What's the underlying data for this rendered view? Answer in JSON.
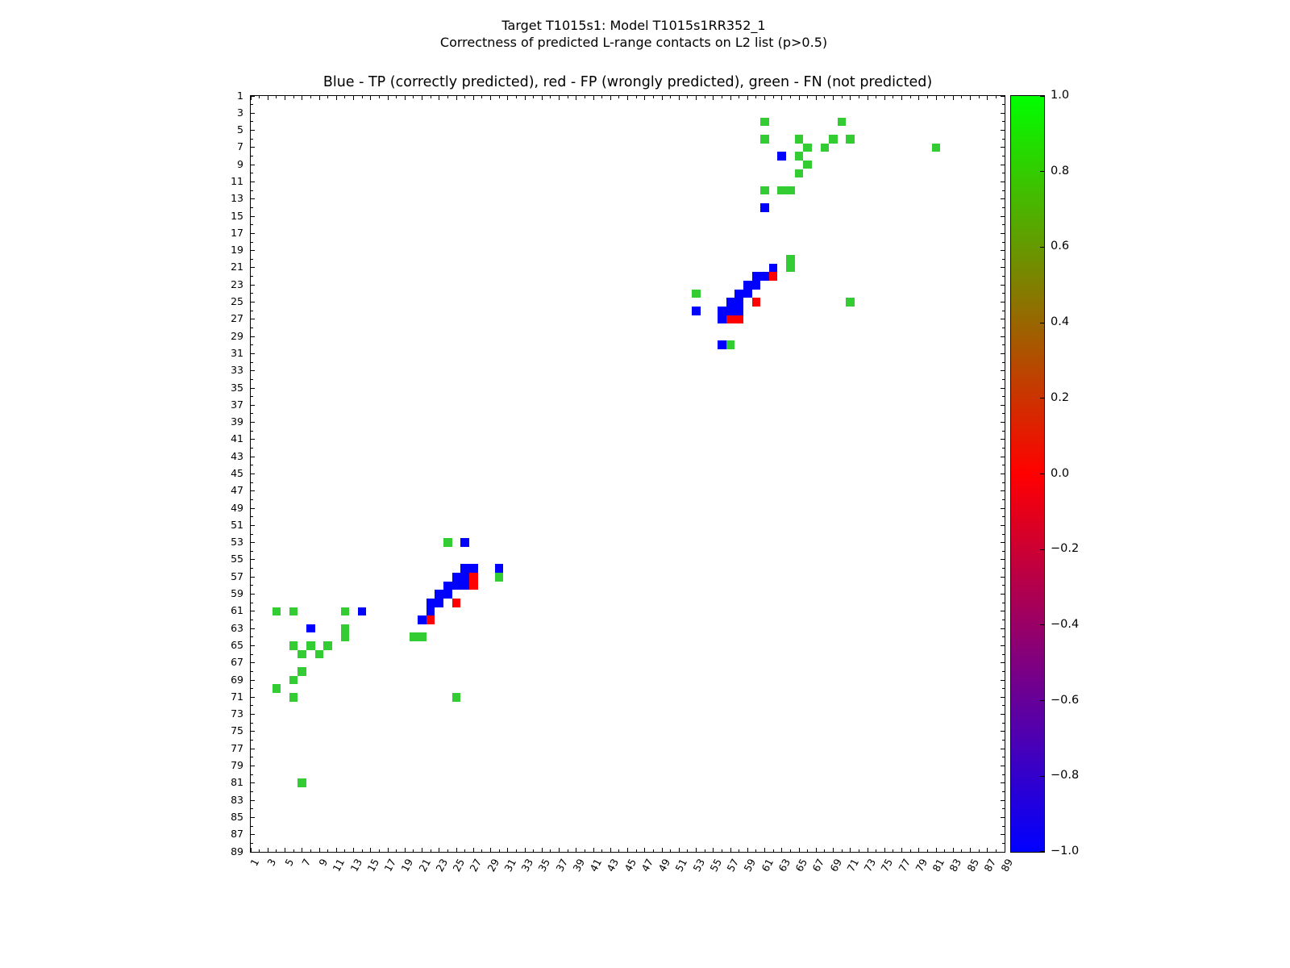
{
  "figure": {
    "suptitle_line1": "Target T1015s1: Model T1015s1RR352_1",
    "suptitle_line2": "Correctness of predicted L-range contacts on L2 list (p>0.5)"
  },
  "chart_data": {
    "type": "heatmap",
    "title": "Blue - TP (correctly predicted), red - FP (wrongly predicted), green - FN (not predicted)",
    "xlabel": "",
    "ylabel": "",
    "axis_range": [
      1,
      89
    ],
    "grid": false,
    "symmetric": true,
    "tick_labels": [
      1,
      3,
      5,
      7,
      9,
      11,
      13,
      15,
      17,
      19,
      21,
      23,
      25,
      27,
      29,
      31,
      33,
      35,
      37,
      39,
      41,
      43,
      45,
      47,
      49,
      51,
      53,
      55,
      57,
      59,
      61,
      63,
      65,
      67,
      69,
      71,
      73,
      75,
      77,
      79,
      81,
      83,
      85,
      87,
      89
    ],
    "colors": {
      "TP": "#0000ff",
      "FP": "#ff0000",
      "FN": "#33cc33"
    },
    "legend": {
      "TP": "Blue - TP (correctly predicted)",
      "FP": "red - FP (wrongly predicted)",
      "FN": "green - FN (not predicted)"
    },
    "contacts": [
      [
        4,
        61,
        "FN"
      ],
      [
        4,
        70,
        "FN"
      ],
      [
        6,
        61,
        "FN"
      ],
      [
        6,
        65,
        "FN"
      ],
      [
        6,
        69,
        "FN"
      ],
      [
        6,
        71,
        "FN"
      ],
      [
        7,
        66,
        "FN"
      ],
      [
        7,
        68,
        "FN"
      ],
      [
        7,
        81,
        "FN"
      ],
      [
        8,
        65,
        "FN"
      ],
      [
        9,
        66,
        "FN"
      ],
      [
        10,
        65,
        "FN"
      ],
      [
        12,
        61,
        "FN"
      ],
      [
        12,
        63,
        "FN"
      ],
      [
        12,
        64,
        "FN"
      ],
      [
        20,
        64,
        "FN"
      ],
      [
        21,
        64,
        "FN"
      ],
      [
        24,
        53,
        "FN"
      ],
      [
        25,
        71,
        "FN"
      ],
      [
        30,
        57,
        "FN"
      ],
      [
        8,
        63,
        "TP"
      ],
      [
        14,
        61,
        "TP"
      ],
      [
        21,
        62,
        "TP"
      ],
      [
        22,
        60,
        "TP"
      ],
      [
        22,
        61,
        "TP"
      ],
      [
        23,
        59,
        "TP"
      ],
      [
        23,
        60,
        "TP"
      ],
      [
        24,
        58,
        "TP"
      ],
      [
        24,
        59,
        "TP"
      ],
      [
        25,
        57,
        "TP"
      ],
      [
        25,
        58,
        "TP"
      ],
      [
        26,
        53,
        "TP"
      ],
      [
        26,
        56,
        "TP"
      ],
      [
        26,
        57,
        "TP"
      ],
      [
        26,
        58,
        "TP"
      ],
      [
        27,
        56,
        "TP"
      ],
      [
        30,
        56,
        "TP"
      ],
      [
        22,
        62,
        "FP"
      ],
      [
        25,
        60,
        "FP"
      ],
      [
        27,
        57,
        "FP"
      ],
      [
        27,
        58,
        "FP"
      ]
    ],
    "colorbar": {
      "min": -1.0,
      "max": 1.0,
      "gradient_stops": [
        "#0000ff",
        "#ff0000",
        "#00ff00"
      ],
      "ticks": [
        {
          "label": "1.0",
          "value": 1.0
        },
        {
          "label": "0.8",
          "value": 0.8
        },
        {
          "label": "0.6",
          "value": 0.6
        },
        {
          "label": "0.4",
          "value": 0.4
        },
        {
          "label": "0.2",
          "value": 0.2
        },
        {
          "label": "0.0",
          "value": 0.0
        },
        {
          "label": "−0.2",
          "value": -0.2
        },
        {
          "label": "−0.4",
          "value": -0.4
        },
        {
          "label": "−0.6",
          "value": -0.6
        },
        {
          "label": "−0.8",
          "value": -0.8
        },
        {
          "label": "−1.0",
          "value": -1.0
        }
      ]
    }
  }
}
